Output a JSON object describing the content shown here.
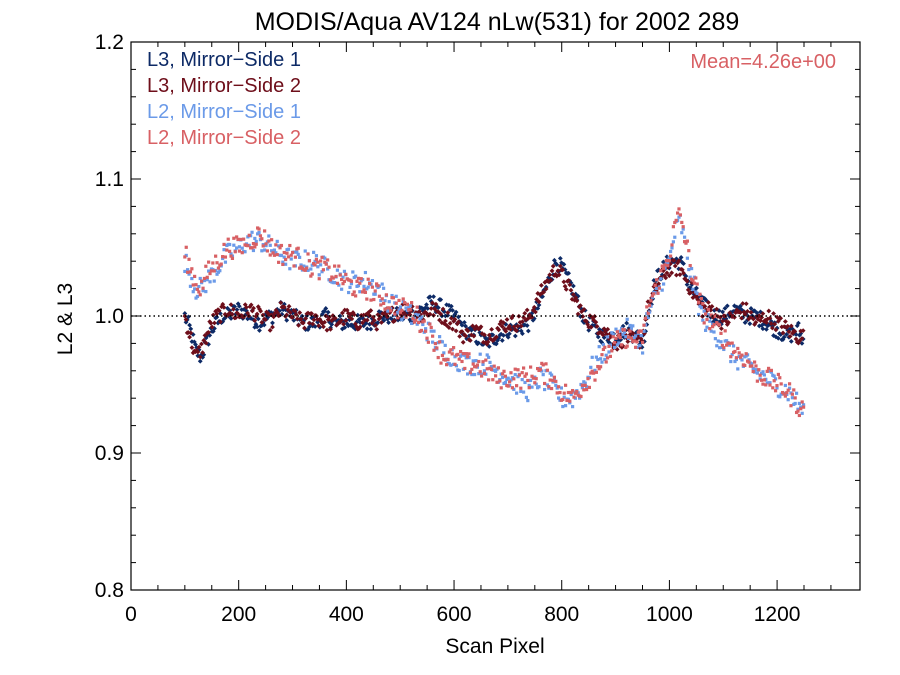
{
  "chart_data": {
    "type": "scatter",
    "title": "MODIS/Aqua AV124 nLw(531) for 2002 289",
    "xlabel": "Scan Pixel",
    "ylabel": "L2 & L3",
    "xlim": [
      0,
      1354
    ],
    "ylim": [
      0.8,
      1.2
    ],
    "x_ticks": [
      "0",
      "200",
      "400",
      "600",
      "800",
      "1000",
      "1200"
    ],
    "y_ticks": [
      "0.8",
      "0.9",
      "1.0",
      "1.1",
      "1.2"
    ],
    "reference_line": 1.0,
    "annotation": "Mean=4.26e+00",
    "annotation_color": "#d86064",
    "legend_position": "top-left",
    "grid": false,
    "series": [
      {
        "name": "L3, Mirror−Side 1",
        "color": "#0d2a66",
        "points": [
          [
            100,
            1.0
          ],
          [
            110,
            0.99
          ],
          [
            120,
            0.975
          ],
          [
            130,
            0.97
          ],
          [
            140,
            0.98
          ],
          [
            150,
            0.99
          ],
          [
            160,
            0.995
          ],
          [
            170,
            1.0
          ],
          [
            180,
            1.0
          ],
          [
            200,
            1.005
          ],
          [
            220,
            1.0
          ],
          [
            240,
            0.995
          ],
          [
            260,
            1.0
          ],
          [
            280,
            1.005
          ],
          [
            300,
            1.0
          ],
          [
            320,
            0.995
          ],
          [
            340,
            0.995
          ],
          [
            360,
            1.0
          ],
          [
            380,
            0.995
          ],
          [
            400,
            0.995
          ],
          [
            420,
            0.995
          ],
          [
            440,
            0.995
          ],
          [
            460,
            1.0
          ],
          [
            480,
            1.0
          ],
          [
            500,
            1.0
          ],
          [
            520,
            1.0
          ],
          [
            540,
            1.005
          ],
          [
            560,
            1.01
          ],
          [
            580,
            1.005
          ],
          [
            600,
            1.0
          ],
          [
            620,
            0.99
          ],
          [
            640,
            0.985
          ],
          [
            660,
            0.98
          ],
          [
            680,
            0.985
          ],
          [
            700,
            0.99
          ],
          [
            720,
            0.99
          ],
          [
            740,
            0.995
          ],
          [
            760,
            1.01
          ],
          [
            780,
            1.03
          ],
          [
            790,
            1.04
          ],
          [
            800,
            1.035
          ],
          [
            820,
            1.02
          ],
          [
            840,
            1.0
          ],
          [
            860,
            0.99
          ],
          [
            880,
            0.985
          ],
          [
            900,
            0.985
          ],
          [
            920,
            0.99
          ],
          [
            940,
            0.985
          ],
          [
            950,
            0.98
          ],
          [
            960,
            1.0
          ],
          [
            970,
            1.02
          ],
          [
            980,
            1.03
          ],
          [
            1000,
            1.04
          ],
          [
            1020,
            1.04
          ],
          [
            1040,
            1.02
          ],
          [
            1060,
            1.01
          ],
          [
            1080,
            1.0
          ],
          [
            1100,
            1.0
          ],
          [
            1120,
            1.005
          ],
          [
            1140,
            1.0
          ],
          [
            1160,
            1.0
          ],
          [
            1180,
            0.995
          ],
          [
            1200,
            0.99
          ],
          [
            1220,
            0.985
          ],
          [
            1240,
            0.99
          ],
          [
            1250,
            0.98
          ]
        ]
      },
      {
        "name": "L3, Mirror−Side 2",
        "color": "#6e0e1a",
        "points": [
          [
            100,
            1.0
          ],
          [
            110,
            0.985
          ],
          [
            120,
            0.97
          ],
          [
            130,
            0.975
          ],
          [
            140,
            0.985
          ],
          [
            150,
            0.995
          ],
          [
            160,
            1.0
          ],
          [
            180,
            1.005
          ],
          [
            200,
            1.0
          ],
          [
            220,
            1.005
          ],
          [
            240,
            1.0
          ],
          [
            260,
            0.995
          ],
          [
            280,
            1.005
          ],
          [
            300,
            1.0
          ],
          [
            320,
            0.995
          ],
          [
            340,
            1.0
          ],
          [
            360,
            0.995
          ],
          [
            380,
            0.995
          ],
          [
            400,
            1.0
          ],
          [
            420,
            0.995
          ],
          [
            440,
            1.0
          ],
          [
            460,
            0.995
          ],
          [
            480,
            1.0
          ],
          [
            500,
            1.005
          ],
          [
            520,
            1.005
          ],
          [
            540,
            1.0
          ],
          [
            560,
            1.005
          ],
          [
            580,
            1.0
          ],
          [
            600,
            0.995
          ],
          [
            620,
            0.985
          ],
          [
            640,
            0.99
          ],
          [
            660,
            0.985
          ],
          [
            680,
            0.99
          ],
          [
            700,
            0.995
          ],
          [
            720,
            0.995
          ],
          [
            740,
            1.0
          ],
          [
            760,
            1.015
          ],
          [
            780,
            1.03
          ],
          [
            790,
            1.035
          ],
          [
            800,
            1.03
          ],
          [
            820,
            1.015
          ],
          [
            840,
            1.0
          ],
          [
            860,
            0.995
          ],
          [
            880,
            0.99
          ],
          [
            900,
            0.98
          ],
          [
            920,
            0.985
          ],
          [
            940,
            0.98
          ],
          [
            950,
            0.985
          ],
          [
            960,
            1.005
          ],
          [
            980,
            1.025
          ],
          [
            1000,
            1.035
          ],
          [
            1020,
            1.035
          ],
          [
            1040,
            1.02
          ],
          [
            1060,
            1.005
          ],
          [
            1080,
            1.005
          ],
          [
            1100,
            0.995
          ],
          [
            1120,
            1.0
          ],
          [
            1140,
            1.005
          ],
          [
            1160,
            0.995
          ],
          [
            1180,
            1.0
          ],
          [
            1200,
            0.995
          ],
          [
            1220,
            0.99
          ],
          [
            1240,
            0.985
          ],
          [
            1250,
            0.985
          ]
        ]
      },
      {
        "name": "L2, Mirror−Side 1",
        "color": "#6b9ae8",
        "points": [
          [
            100,
            1.04
          ],
          [
            110,
            1.03
          ],
          [
            120,
            1.02
          ],
          [
            130,
            1.02
          ],
          [
            140,
            1.025
          ],
          [
            160,
            1.035
          ],
          [
            180,
            1.045
          ],
          [
            200,
            1.05
          ],
          [
            220,
            1.055
          ],
          [
            240,
            1.055
          ],
          [
            260,
            1.05
          ],
          [
            280,
            1.045
          ],
          [
            300,
            1.04
          ],
          [
            320,
            1.04
          ],
          [
            340,
            1.04
          ],
          [
            360,
            1.035
          ],
          [
            380,
            1.03
          ],
          [
            400,
            1.025
          ],
          [
            420,
            1.025
          ],
          [
            440,
            1.025
          ],
          [
            460,
            1.02
          ],
          [
            480,
            1.01
          ],
          [
            500,
            1.005
          ],
          [
            520,
            1.0
          ],
          [
            540,
            0.995
          ],
          [
            560,
            0.985
          ],
          [
            580,
            0.975
          ],
          [
            600,
            0.97
          ],
          [
            620,
            0.965
          ],
          [
            640,
            0.965
          ],
          [
            660,
            0.965
          ],
          [
            680,
            0.96
          ],
          [
            700,
            0.955
          ],
          [
            720,
            0.95
          ],
          [
            740,
            0.945
          ],
          [
            760,
            0.955
          ],
          [
            780,
            0.95
          ],
          [
            800,
            0.94
          ],
          [
            820,
            0.94
          ],
          [
            840,
            0.95
          ],
          [
            860,
            0.965
          ],
          [
            880,
            0.975
          ],
          [
            900,
            0.985
          ],
          [
            920,
            0.99
          ],
          [
            940,
            0.985
          ],
          [
            950,
            0.98
          ],
          [
            960,
            1.0
          ],
          [
            980,
            1.02
          ],
          [
            1000,
            1.04
          ],
          [
            1010,
            1.06
          ],
          [
            1020,
            1.07
          ],
          [
            1040,
            1.03
          ],
          [
            1060,
            1.0
          ],
          [
            1080,
            0.99
          ],
          [
            1100,
            0.98
          ],
          [
            1120,
            0.97
          ],
          [
            1140,
            0.965
          ],
          [
            1160,
            0.96
          ],
          [
            1180,
            0.955
          ],
          [
            1200,
            0.95
          ],
          [
            1220,
            0.945
          ],
          [
            1240,
            0.935
          ],
          [
            1250,
            0.93
          ]
        ]
      },
      {
        "name": "L2, Mirror−Side 2",
        "color": "#d86064",
        "points": [
          [
            100,
            1.045
          ],
          [
            110,
            1.035
          ],
          [
            120,
            1.025
          ],
          [
            130,
            1.02
          ],
          [
            140,
            1.03
          ],
          [
            160,
            1.04
          ],
          [
            180,
            1.05
          ],
          [
            200,
            1.05
          ],
          [
            220,
            1.055
          ],
          [
            240,
            1.06
          ],
          [
            260,
            1.05
          ],
          [
            280,
            1.045
          ],
          [
            300,
            1.045
          ],
          [
            320,
            1.04
          ],
          [
            340,
            1.035
          ],
          [
            360,
            1.035
          ],
          [
            380,
            1.03
          ],
          [
            400,
            1.025
          ],
          [
            420,
            1.02
          ],
          [
            440,
            1.02
          ],
          [
            460,
            1.015
          ],
          [
            480,
            1.01
          ],
          [
            500,
            1.005
          ],
          [
            520,
            1.005
          ],
          [
            540,
            0.995
          ],
          [
            560,
            0.985
          ],
          [
            580,
            0.97
          ],
          [
            600,
            0.97
          ],
          [
            620,
            0.965
          ],
          [
            640,
            0.965
          ],
          [
            660,
            0.96
          ],
          [
            680,
            0.955
          ],
          [
            700,
            0.955
          ],
          [
            720,
            0.955
          ],
          [
            740,
            0.955
          ],
          [
            760,
            0.96
          ],
          [
            780,
            0.955
          ],
          [
            800,
            0.945
          ],
          [
            820,
            0.94
          ],
          [
            840,
            0.95
          ],
          [
            860,
            0.96
          ],
          [
            880,
            0.97
          ],
          [
            900,
            0.98
          ],
          [
            920,
            0.985
          ],
          [
            940,
            0.98
          ],
          [
            950,
            0.985
          ],
          [
            960,
            1.005
          ],
          [
            980,
            1.025
          ],
          [
            1000,
            1.045
          ],
          [
            1010,
            1.065
          ],
          [
            1020,
            1.075
          ],
          [
            1040,
            1.035
          ],
          [
            1060,
            1.005
          ],
          [
            1080,
            0.995
          ],
          [
            1100,
            0.985
          ],
          [
            1120,
            0.975
          ],
          [
            1140,
            0.97
          ],
          [
            1160,
            0.96
          ],
          [
            1180,
            0.955
          ],
          [
            1200,
            0.95
          ],
          [
            1220,
            0.945
          ],
          [
            1240,
            0.935
          ],
          [
            1250,
            0.93
          ]
        ]
      }
    ]
  }
}
